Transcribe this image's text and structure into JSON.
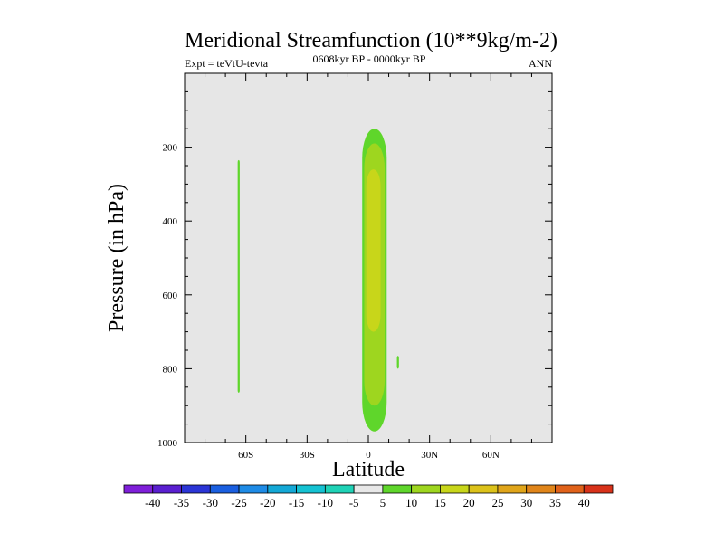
{
  "chart_data": {
    "type": "contour",
    "title": "Meridional Streamfunction (10**9kg/m-2)",
    "subtitle_left": "Expt = teVtU-tevta",
    "subtitle_center": "0608kyr BP - 0000kyr BP",
    "subtitle_right": "ANN",
    "xlabel": "Latitude",
    "ylabel": "Pressure (in hPa)",
    "xlim": [
      -90,
      90
    ],
    "ylim": [
      1000,
      0
    ],
    "x_ticks": [
      {
        "value": -60,
        "label": "60S"
      },
      {
        "value": -30,
        "label": "30S"
      },
      {
        "value": 0,
        "label": "0"
      },
      {
        "value": 30,
        "label": "30N"
      },
      {
        "value": 60,
        "label": "60N"
      }
    ],
    "y_ticks": [
      {
        "value": 200,
        "label": "200"
      },
      {
        "value": 400,
        "label": "400"
      },
      {
        "value": 600,
        "label": "600"
      },
      {
        "value": 800,
        "label": "800"
      },
      {
        "value": 1000,
        "label": "1000"
      }
    ],
    "background_color": "#e6e6e6",
    "contour_regions": [
      {
        "description": "southern narrow cell",
        "lat_range": [
          -64,
          -63
        ],
        "pressure_range": [
          235,
          865
        ],
        "level": 5
      },
      {
        "description": "equatorial cell outer",
        "lat_range": [
          -3,
          9
        ],
        "pressure_range": [
          150,
          970
        ],
        "level": 5
      },
      {
        "description": "equatorial cell middle",
        "lat_range": [
          -2,
          8
        ],
        "pressure_range": [
          190,
          900
        ],
        "level": 10
      },
      {
        "description": "equatorial cell inner",
        "lat_range": [
          -1,
          6
        ],
        "pressure_range": [
          260,
          700
        ],
        "level": 15
      },
      {
        "description": "small northern patch",
        "lat_range": [
          14,
          15
        ],
        "pressure_range": [
          765,
          800
        ],
        "level": 5
      }
    ],
    "colorbar": {
      "labels": [
        "-40",
        "-35",
        "-30",
        "-25",
        "-20",
        "-15",
        "-10",
        "-5",
        "5",
        "10",
        "15",
        "20",
        "25",
        "30",
        "35",
        "40"
      ],
      "colors": [
        "#7f1fd9",
        "#5a1fd0",
        "#2b35d6",
        "#1a5fe0",
        "#1e8be6",
        "#14a8d6",
        "#15c2d2",
        "#1fd2b6",
        "#e8e8e8",
        "#5fd62b",
        "#9ed61f",
        "#c8d61a",
        "#dcc21a",
        "#e0a51a",
        "#e0851a",
        "#e0621a",
        "#d8321a"
      ]
    }
  }
}
